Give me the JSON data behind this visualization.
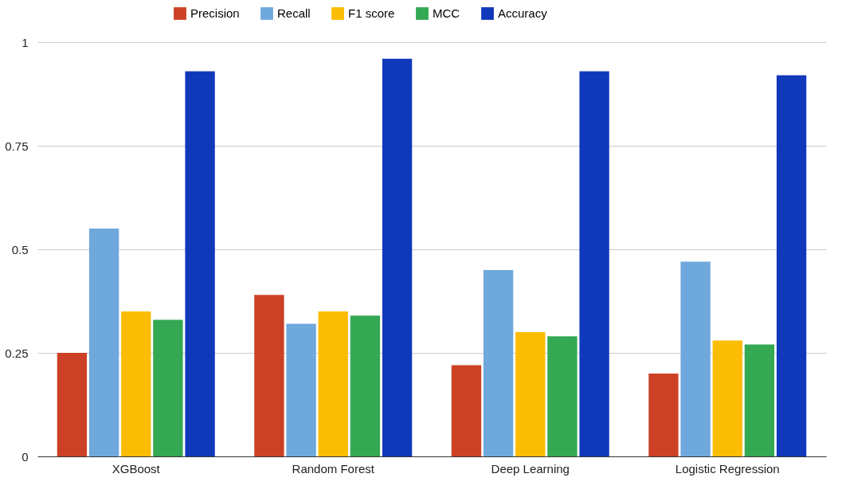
{
  "chart_data": {
    "type": "bar",
    "categories": [
      "XGBoost",
      "Random Forest",
      "Deep Learning",
      "Logistic Regression"
    ],
    "series": [
      {
        "name": "Precision",
        "color": "#cc4125",
        "values": [
          0.25,
          0.39,
          0.22,
          0.2
        ]
      },
      {
        "name": "Recall",
        "color": "#6fa8dc",
        "values": [
          0.55,
          0.32,
          0.45,
          0.47
        ]
      },
      {
        "name": "F1 score",
        "color": "#fbbc04",
        "values": [
          0.35,
          0.35,
          0.3,
          0.28
        ]
      },
      {
        "name": "MCC",
        "color": "#34a853",
        "values": [
          0.33,
          0.34,
          0.29,
          0.27
        ]
      },
      {
        "name": "Accuracy",
        "color": "#1038bb",
        "values": [
          0.93,
          0.96,
          0.93,
          0.92
        ]
      }
    ],
    "ylim": [
      0,
      1
    ],
    "yticks": [
      0,
      0.25,
      0.5,
      0.75,
      1
    ],
    "grid": "y",
    "legend": "top"
  }
}
